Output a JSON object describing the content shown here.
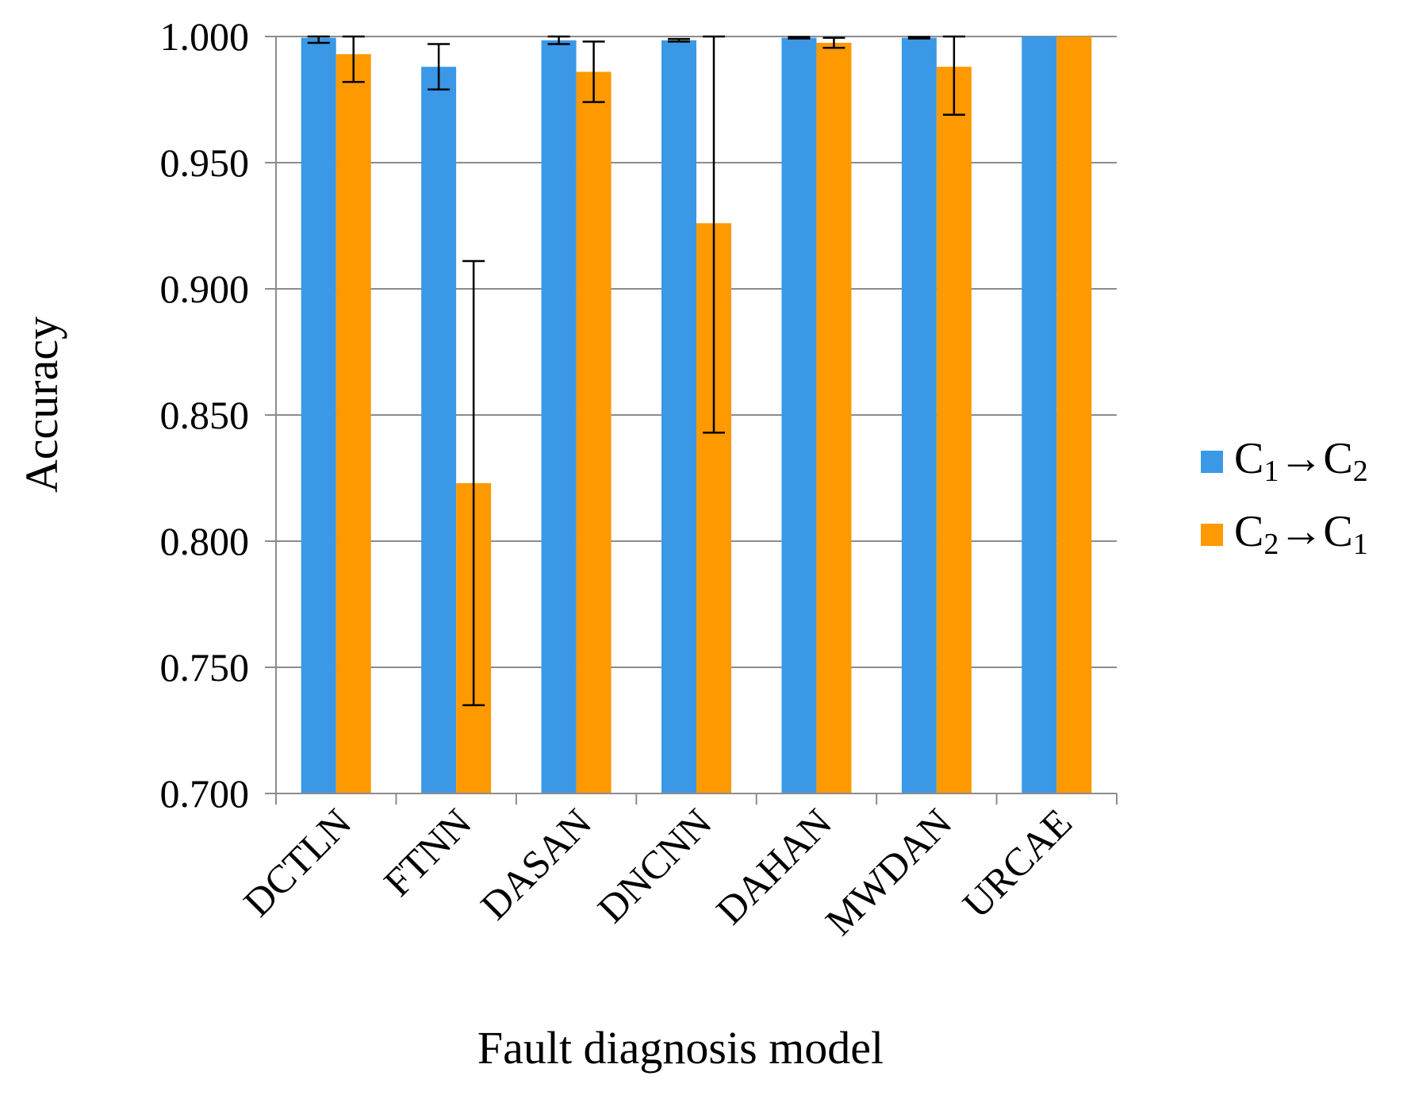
{
  "chart_data": {
    "type": "bar",
    "title": "",
    "xlabel": "Fault diagnosis model",
    "ylabel": "Accuracy",
    "ylim": [
      0.7,
      1.0
    ],
    "yticks": [
      "0.700",
      "0.750",
      "0.800",
      "0.850",
      "0.900",
      "0.950",
      "1.000"
    ],
    "ytick_values": [
      0.7,
      0.75,
      0.8,
      0.85,
      0.9,
      0.95,
      1.0
    ],
    "grid": true,
    "legend_position": "right",
    "categories": [
      "DCTLN",
      "FTNN",
      "DASAN",
      "DNCNN",
      "DAHAN",
      "MWDAN",
      "URCAE"
    ],
    "series": [
      {
        "name": "C1→C2",
        "legend": {
          "base": "C",
          "sub1": "1",
          "arrow": "→",
          "base2": "C",
          "sub2": "2"
        },
        "color": "#3b98e6",
        "values": [
          0.9995,
          0.988,
          0.9985,
          0.9985,
          0.9995,
          0.9995,
          1.0
        ],
        "err": [
          0.002,
          0.009,
          0.0015,
          0.0005,
          0.0003,
          0.0003,
          0.0
        ]
      },
      {
        "name": "C2→C1",
        "legend": {
          "base": "C",
          "sub1": "2",
          "arrow": "→",
          "base2": "C",
          "sub2": "1"
        },
        "color": "#ff9900",
        "values": [
          0.993,
          0.823,
          0.986,
          0.926,
          0.9975,
          0.988,
          1.0
        ],
        "err": [
          0.011,
          0.088,
          0.012,
          0.083,
          0.002,
          0.019,
          0.0
        ]
      }
    ]
  }
}
